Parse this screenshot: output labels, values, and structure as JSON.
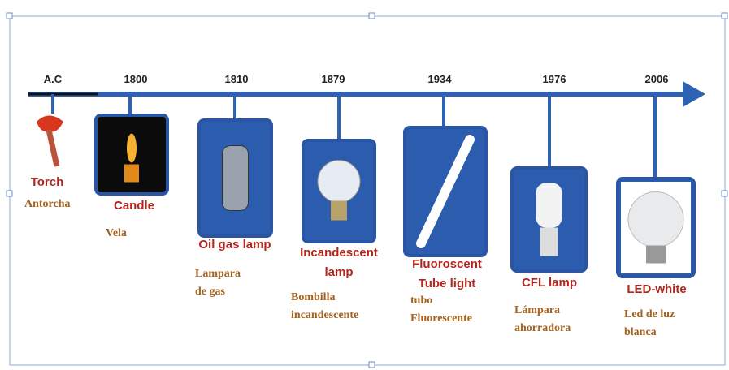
{
  "nodes": [
    {
      "year": "A.C",
      "label": [
        "Torch"
      ],
      "translation": [
        "Antorcha"
      ]
    },
    {
      "year": "1800",
      "label": [
        "Candle"
      ],
      "translation": [
        "Vela"
      ]
    },
    {
      "year": "1810",
      "label": [
        "Oil gas lamp"
      ],
      "translation": [
        "Lampara",
        "de gas"
      ]
    },
    {
      "year": "1879",
      "label": [
        "Incandescent",
        "lamp"
      ],
      "translation": [
        "Bombilla",
        "incandescente"
      ]
    },
    {
      "year": "1934",
      "label": [
        "Fluoroscent",
        "Tube light"
      ],
      "translation": [
        "tubo",
        "Fluorescente"
      ]
    },
    {
      "year": "1976",
      "label": [
        "CFL lamp"
      ],
      "translation": [
        "Lámpara",
        "ahorradora"
      ]
    },
    {
      "year": "2006",
      "label": [
        "LED-white"
      ],
      "translation": [
        "Led de luz",
        "blanca"
      ]
    }
  ]
}
